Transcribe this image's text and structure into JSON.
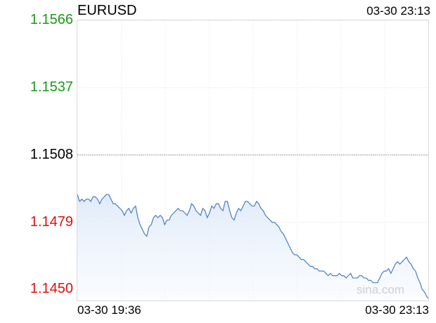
{
  "header": {
    "symbol": "EURUSD",
    "updated": "03-30 23:13"
  },
  "watermark": "sina.com",
  "colors": {
    "line": "#4b7cc3",
    "up": "#1a9a1a",
    "down": "#e01010",
    "neutral": "#000000"
  },
  "chart_data": {
    "type": "area",
    "title": "EURUSD",
    "xlabel": "",
    "ylabel": "",
    "x_start": "03-30 19:36",
    "x_end": "03-30 23:13",
    "previous_close": 1.1508,
    "ylim": [
      1.1445,
      1.1566
    ],
    "y_ticks": [
      "1.1566",
      "1.1537",
      "1.1508",
      "1.1479",
      "1.1450"
    ],
    "x_ticks": [
      "03-30 19:36",
      "03-30 23:13"
    ],
    "grid": true,
    "values": [
      1.1491,
      1.1488,
      1.1489,
      1.1488,
      1.1489,
      1.1489,
      1.1488,
      1.149,
      1.149,
      1.1489,
      1.1487,
      1.1489,
      1.149,
      1.1491,
      1.1491,
      1.1489,
      1.1487,
      1.1487,
      1.1486,
      1.1485,
      1.1484,
      1.1482,
      1.1484,
      1.1485,
      1.1483,
      1.1485,
      1.1486,
      1.1481,
      1.1478,
      1.1476,
      1.1474,
      1.1473,
      1.1477,
      1.1478,
      1.1481,
      1.1482,
      1.1481,
      1.1482,
      1.1481,
      1.1478,
      1.148,
      1.148,
      1.1482,
      1.1483,
      1.1484,
      1.1485,
      1.1484,
      1.1484,
      1.1483,
      1.1482,
      1.1484,
      1.1487,
      1.1486,
      1.1484,
      1.1483,
      1.1482,
      1.1485,
      1.1484,
      1.1481,
      1.1483,
      1.1486,
      1.1485,
      1.1487,
      1.1487,
      1.1485,
      1.1484,
      1.1488,
      1.1488,
      1.1484,
      1.1481,
      1.148,
      1.1483,
      1.1485,
      1.1484,
      1.1486,
      1.1488,
      1.1488,
      1.1487,
      1.1486,
      1.1486,
      1.1488,
      1.1487,
      1.1485,
      1.1484,
      1.1482,
      1.1481,
      1.148,
      1.1479,
      1.1479,
      1.1478,
      1.1477,
      1.1475,
      1.1474,
      1.1472,
      1.147,
      1.1468,
      1.1466,
      1.1465,
      1.1465,
      1.1464,
      1.1463,
      1.1463,
      1.1462,
      1.1461,
      1.146,
      1.146,
      1.1459,
      1.1459,
      1.1458,
      1.1458,
      1.1458,
      1.1457,
      1.1456,
      1.1457,
      1.1456,
      1.1456,
      1.1456,
      1.1457,
      1.1456,
      1.1456,
      1.1455,
      1.1456,
      1.1457,
      1.1455,
      1.1455,
      1.1455,
      1.1456,
      1.1456,
      1.1455,
      1.1455,
      1.1454,
      1.1454,
      1.1453,
      1.1453,
      1.1453,
      1.1455,
      1.1457,
      1.1458,
      1.1458,
      1.1459,
      1.1457,
      1.1459,
      1.1461,
      1.1462,
      1.1461,
      1.1462,
      1.1463,
      1.1464,
      1.1462,
      1.1461,
      1.1459,
      1.1458,
      1.1455,
      1.1453,
      1.145,
      1.1449,
      1.1447,
      1.1446
    ]
  }
}
